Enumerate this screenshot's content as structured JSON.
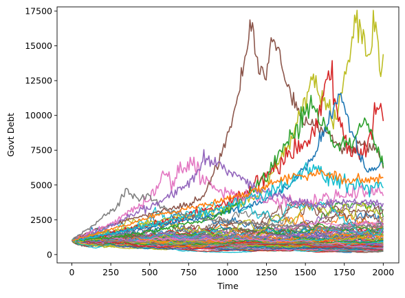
{
  "chart_data": {
    "type": "line",
    "title": "",
    "xlabel": "Time",
    "ylabel": "Govt Debt",
    "xlim": [
      -95,
      2100
    ],
    "ylim": [
      -600,
      17800
    ],
    "xticks": [
      0,
      250,
      500,
      750,
      1000,
      1250,
      1500,
      1750,
      2000
    ],
    "yticks": [
      0,
      2500,
      5000,
      7500,
      10000,
      12500,
      15000,
      17500
    ],
    "grid": false,
    "legend": "none",
    "series_count": 100,
    "start_value": 1000,
    "x_max": 2000,
    "palette": [
      "#1f77b4",
      "#ff7f0e",
      "#2ca02c",
      "#d62728",
      "#9467bd",
      "#8c564b",
      "#e377c2",
      "#7f7f7f",
      "#bcbd22",
      "#17becf"
    ],
    "highlighted_series": [
      {
        "color": "#8c564b",
        "points": [
          [
            0,
            1000
          ],
          [
            150,
            1800
          ],
          [
            300,
            2300
          ],
          [
            450,
            2800
          ],
          [
            600,
            3200
          ],
          [
            750,
            3600
          ],
          [
            850,
            4200
          ],
          [
            950,
            6800
          ],
          [
            1050,
            10500
          ],
          [
            1100,
            13500
          ],
          [
            1160,
            16700
          ],
          [
            1200,
            13200
          ],
          [
            1250,
            12600
          ],
          [
            1280,
            15600
          ],
          [
            1320,
            15300
          ],
          [
            1360,
            13000
          ],
          [
            1420,
            11000
          ],
          [
            1500,
            9500
          ],
          [
            1600,
            9000
          ],
          [
            1700,
            8000
          ],
          [
            1800,
            7500
          ],
          [
            1900,
            8000
          ],
          [
            1960,
            7500
          ],
          [
            2000,
            6300
          ]
        ]
      },
      {
        "color": "#bcbd22",
        "points": [
          [
            0,
            1000
          ],
          [
            200,
            1500
          ],
          [
            400,
            2000
          ],
          [
            600,
            2500
          ],
          [
            800,
            2800
          ],
          [
            1000,
            3300
          ],
          [
            1200,
            4300
          ],
          [
            1400,
            8000
          ],
          [
            1500,
            11000
          ],
          [
            1550,
            12600
          ],
          [
            1600,
            11000
          ],
          [
            1700,
            9500
          ],
          [
            1750,
            12500
          ],
          [
            1800,
            15500
          ],
          [
            1830,
            16900
          ],
          [
            1860,
            15500
          ],
          [
            1900,
            14000
          ],
          [
            1950,
            16600
          ],
          [
            1980,
            13000
          ],
          [
            2000,
            13900
          ]
        ]
      },
      {
        "color": "#d62728",
        "points": [
          [
            0,
            1000
          ],
          [
            200,
            1400
          ],
          [
            400,
            1900
          ],
          [
            600,
            2400
          ],
          [
            800,
            3000
          ],
          [
            1000,
            3800
          ],
          [
            1200,
            5200
          ],
          [
            1400,
            7300
          ],
          [
            1550,
            8500
          ],
          [
            1650,
            12900
          ],
          [
            1700,
            10500
          ],
          [
            1750,
            8000
          ],
          [
            1800,
            7200
          ],
          [
            1900,
            7800
          ],
          [
            1950,
            10200
          ],
          [
            1975,
            10600
          ],
          [
            2000,
            9700
          ]
        ]
      },
      {
        "color": "#1f77b4",
        "points": [
          [
            0,
            1000
          ],
          [
            300,
            1600
          ],
          [
            600,
            2200
          ],
          [
            900,
            2800
          ],
          [
            1200,
            3700
          ],
          [
            1400,
            5000
          ],
          [
            1550,
            7000
          ],
          [
            1650,
            9500
          ],
          [
            1720,
            11700
          ],
          [
            1780,
            9500
          ],
          [
            1850,
            7000
          ],
          [
            1900,
            5800
          ],
          [
            1950,
            6200
          ],
          [
            2000,
            6400
          ]
        ]
      },
      {
        "color": "#2ca02c",
        "points": [
          [
            0,
            1000
          ],
          [
            300,
            1300
          ],
          [
            600,
            1900
          ],
          [
            900,
            2600
          ],
          [
            1100,
            4000
          ],
          [
            1250,
            5600
          ],
          [
            1350,
            7500
          ],
          [
            1450,
            9000
          ],
          [
            1500,
            10200
          ],
          [
            1560,
            10900
          ],
          [
            1620,
            9000
          ],
          [
            1700,
            7600
          ],
          [
            1800,
            8000
          ],
          [
            1880,
            9600
          ],
          [
            1940,
            8500
          ],
          [
            2000,
            6400
          ]
        ]
      },
      {
        "color": "#e377c2",
        "points": [
          [
            0,
            1000
          ],
          [
            150,
            1700
          ],
          [
            300,
            2500
          ],
          [
            450,
            3600
          ],
          [
            550,
            4700
          ],
          [
            600,
            6000
          ],
          [
            640,
            5200
          ],
          [
            700,
            6300
          ],
          [
            780,
            6500
          ],
          [
            850,
            5500
          ],
          [
            950,
            4600
          ],
          [
            1100,
            4200
          ],
          [
            1300,
            3900
          ],
          [
            1500,
            3800
          ],
          [
            1700,
            4200
          ],
          [
            1900,
            4600
          ],
          [
            2000,
            4400
          ]
        ]
      },
      {
        "color": "#7f7f7f",
        "points": [
          [
            0,
            1000
          ],
          [
            150,
            2200
          ],
          [
            280,
            3400
          ],
          [
            350,
            4800
          ],
          [
            400,
            4000
          ],
          [
            500,
            4200
          ],
          [
            600,
            3200
          ],
          [
            750,
            2800
          ],
          [
            900,
            2500
          ],
          [
            1100,
            2300
          ],
          [
            1300,
            2100
          ],
          [
            1500,
            2000
          ],
          [
            1700,
            1900
          ],
          [
            1900,
            2100
          ],
          [
            2000,
            2000
          ]
        ]
      },
      {
        "color": "#9467bd",
        "points": [
          [
            0,
            1000
          ],
          [
            200,
            1800
          ],
          [
            400,
            2900
          ],
          [
            600,
            4000
          ],
          [
            750,
            5000
          ],
          [
            850,
            6800
          ],
          [
            950,
            6500
          ],
          [
            1050,
            5600
          ],
          [
            1200,
            4700
          ],
          [
            1400,
            4000
          ],
          [
            1600,
            3500
          ],
          [
            1800,
            3900
          ],
          [
            2000,
            3600
          ]
        ]
      },
      {
        "color": "#17becf",
        "points": [
          [
            0,
            1000
          ],
          [
            250,
            1500
          ],
          [
            500,
            2100
          ],
          [
            800,
            2900
          ],
          [
            1000,
            3500
          ],
          [
            1200,
            4200
          ],
          [
            1400,
            5200
          ],
          [
            1550,
            6200
          ],
          [
            1650,
            5500
          ],
          [
            1800,
            5000
          ],
          [
            2000,
            4700
          ]
        ]
      },
      {
        "color": "#ff7f0e",
        "points": [
          [
            0,
            1000
          ],
          [
            250,
            1800
          ],
          [
            500,
            2700
          ],
          [
            750,
            3300
          ],
          [
            1000,
            4000
          ],
          [
            1200,
            4700
          ],
          [
            1400,
            5600
          ],
          [
            1600,
            5900
          ],
          [
            1800,
            5300
          ],
          [
            2000,
            5600
          ]
        ]
      }
    ]
  }
}
